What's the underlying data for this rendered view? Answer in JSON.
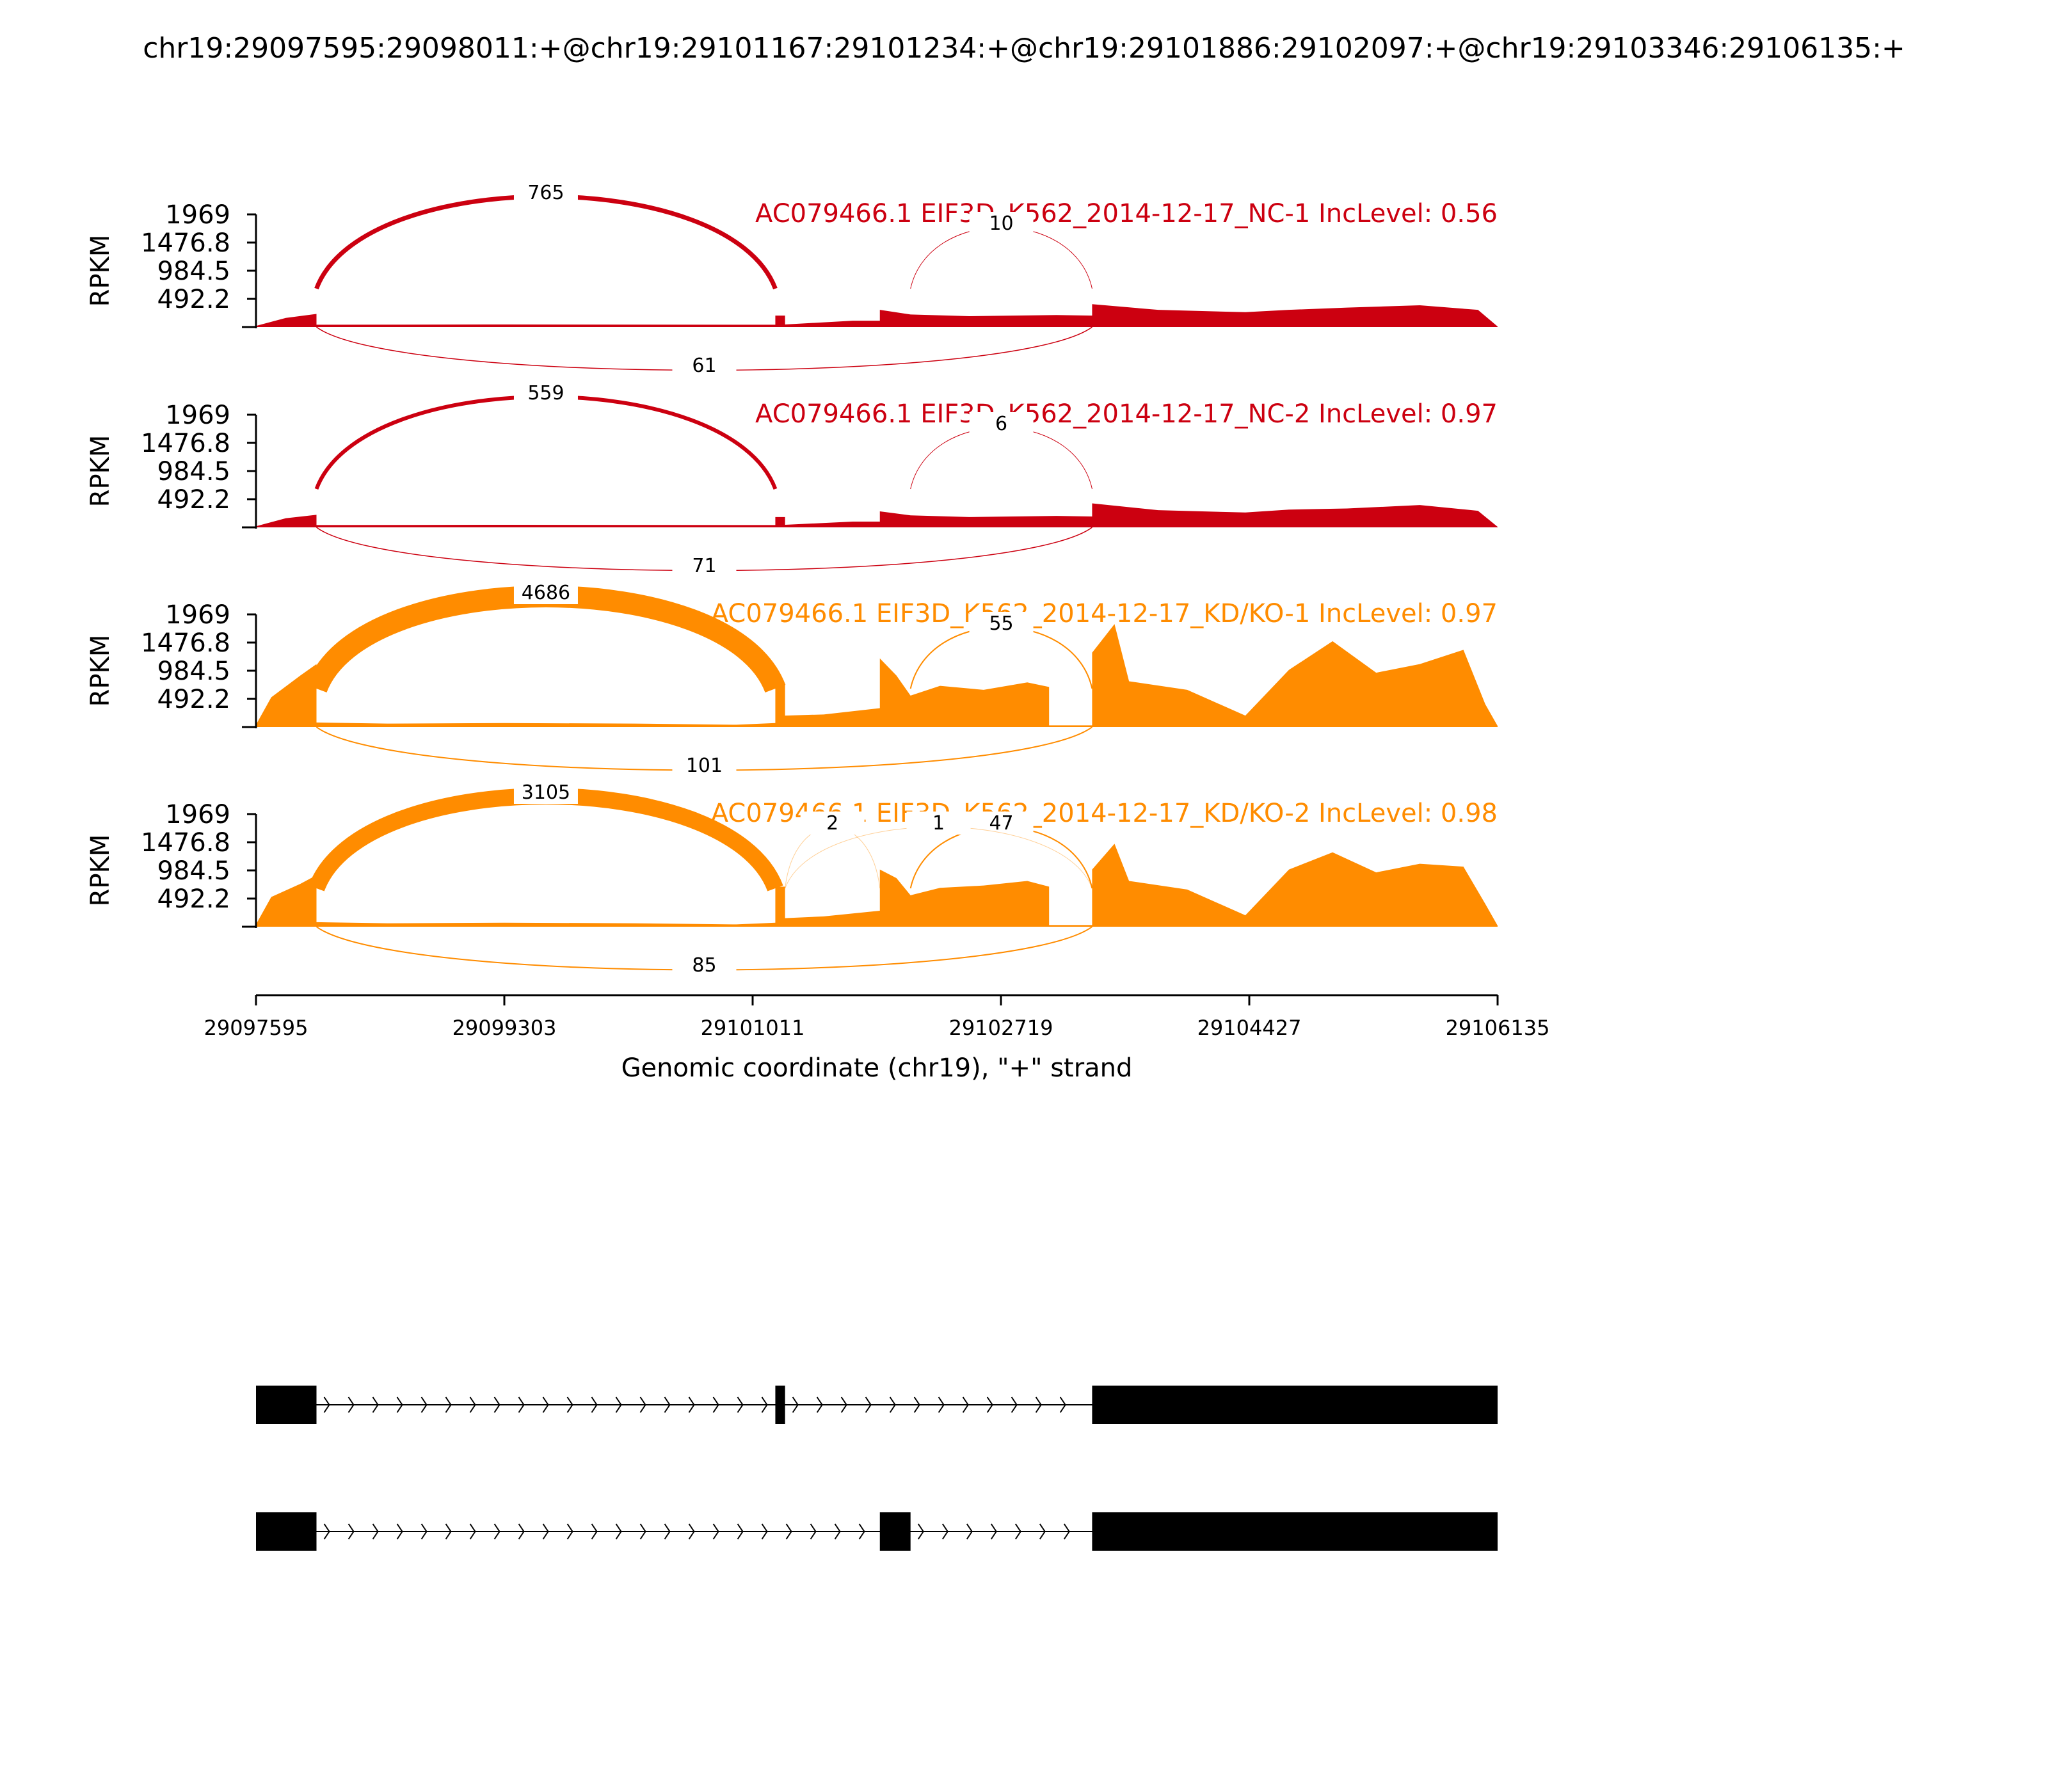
{
  "title": "chr19:29097595:29098011:+@chr19:29101167:29101234:+@chr19:29101886:29102097:+@chr19:29103346:29106135:+",
  "chart_data": {
    "type": "sashimi",
    "xlabel": "Genomic coordinate (chr19), \"+\" strand",
    "xlim": [
      29097595,
      29106135
    ],
    "x_ticks": [
      29097595,
      29099303,
      29101011,
      29102719,
      29104427,
      29106135
    ],
    "x_tick_labels": [
      "29097595",
      "29099303",
      "29101011",
      "29102719",
      "29104427",
      "29106135"
    ],
    "ylabel": "RPKM",
    "ylim": [
      0,
      1969
    ],
    "y_ticks": [
      0,
      492.2,
      984.5,
      1476.8,
      1969
    ],
    "y_tick_labels": [
      "",
      "492.2",
      "984.5",
      "1476.8",
      "1969"
    ],
    "exons": [
      {
        "start": 29097595,
        "end": 29098011
      },
      {
        "start": 29101167,
        "end": 29101234
      },
      {
        "start": 29101886,
        "end": 29102097
      },
      {
        "start": 29103346,
        "end": 29106135
      }
    ],
    "panels": [
      {
        "label": "AC079466.1 EIF3D_K562_2014-12-17_NC-1 IncLevel: 0.56",
        "color": "#cc0010",
        "coverage": [
          {
            "x": 29097595,
            "y": 20
          },
          {
            "x": 29097800,
            "y": 160
          },
          {
            "x": 29098011,
            "y": 230
          },
          {
            "x": 29098011,
            "y": 40
          },
          {
            "x": 29099303,
            "y": 45
          },
          {
            "x": 29101167,
            "y": 40
          },
          {
            "x": 29101167,
            "y": 200
          },
          {
            "x": 29101234,
            "y": 200
          },
          {
            "x": 29101234,
            "y": 45
          },
          {
            "x": 29101700,
            "y": 110
          },
          {
            "x": 29101886,
            "y": 110
          },
          {
            "x": 29101886,
            "y": 300
          },
          {
            "x": 29102097,
            "y": 220
          },
          {
            "x": 29102500,
            "y": 190
          },
          {
            "x": 29103100,
            "y": 210
          },
          {
            "x": 29103346,
            "y": 200
          },
          {
            "x": 29103346,
            "y": 400
          },
          {
            "x": 29103800,
            "y": 300
          },
          {
            "x": 29104400,
            "y": 260
          },
          {
            "x": 29104700,
            "y": 300
          },
          {
            "x": 29105100,
            "y": 340
          },
          {
            "x": 29105600,
            "y": 380
          },
          {
            "x": 29106000,
            "y": 300
          },
          {
            "x": 29106135,
            "y": 10
          }
        ],
        "junctions": [
          {
            "start": 29098011,
            "end": 29101167,
            "count": "765",
            "side": "above",
            "width": 7
          },
          {
            "start": 29098011,
            "end": 29103346,
            "count": "61",
            "side": "below",
            "width": 1.5
          },
          {
            "start": 29102097,
            "end": 29103346,
            "count": "10",
            "side": "above",
            "width": 1
          }
        ]
      },
      {
        "label": "AC079466.1 EIF3D_K562_2014-12-17_NC-2 IncLevel: 0.97",
        "color": "#cc0010",
        "coverage": [
          {
            "x": 29097595,
            "y": 20
          },
          {
            "x": 29097800,
            "y": 160
          },
          {
            "x": 29098011,
            "y": 220
          },
          {
            "x": 29098011,
            "y": 40
          },
          {
            "x": 29099303,
            "y": 45
          },
          {
            "x": 29101167,
            "y": 40
          },
          {
            "x": 29101167,
            "y": 180
          },
          {
            "x": 29101234,
            "y": 180
          },
          {
            "x": 29101234,
            "y": 45
          },
          {
            "x": 29101700,
            "y": 100
          },
          {
            "x": 29101886,
            "y": 100
          },
          {
            "x": 29101886,
            "y": 280
          },
          {
            "x": 29102097,
            "y": 210
          },
          {
            "x": 29102500,
            "y": 180
          },
          {
            "x": 29103100,
            "y": 200
          },
          {
            "x": 29103346,
            "y": 190
          },
          {
            "x": 29103346,
            "y": 420
          },
          {
            "x": 29103800,
            "y": 300
          },
          {
            "x": 29104400,
            "y": 260
          },
          {
            "x": 29104700,
            "y": 310
          },
          {
            "x": 29105100,
            "y": 330
          },
          {
            "x": 29105600,
            "y": 390
          },
          {
            "x": 29106000,
            "y": 290
          },
          {
            "x": 29106135,
            "y": 10
          }
        ],
        "junctions": [
          {
            "start": 29098011,
            "end": 29101167,
            "count": "559",
            "side": "above",
            "width": 6
          },
          {
            "start": 29098011,
            "end": 29103346,
            "count": "71",
            "side": "below",
            "width": 1.5
          },
          {
            "start": 29102097,
            "end": 29103346,
            "count": "6",
            "side": "above",
            "width": 1
          }
        ]
      },
      {
        "label": "AC079466.1 EIF3D_K562_2014-12-17_KD/KO-1 IncLevel: 0.97",
        "color": "#ff8c00",
        "coverage": [
          {
            "x": 29097595,
            "y": 40
          },
          {
            "x": 29097700,
            "y": 520
          },
          {
            "x": 29097900,
            "y": 900
          },
          {
            "x": 29098011,
            "y": 1100
          },
          {
            "x": 29098011,
            "y": 80
          },
          {
            "x": 29098500,
            "y": 60
          },
          {
            "x": 29099303,
            "y": 70
          },
          {
            "x": 29100200,
            "y": 60
          },
          {
            "x": 29100900,
            "y": 40
          },
          {
            "x": 29101167,
            "y": 70
          },
          {
            "x": 29101167,
            "y": 750
          },
          {
            "x": 29101234,
            "y": 750
          },
          {
            "x": 29101234,
            "y": 200
          },
          {
            "x": 29101500,
            "y": 220
          },
          {
            "x": 29101886,
            "y": 330
          },
          {
            "x": 29101886,
            "y": 1200
          },
          {
            "x": 29102000,
            "y": 900
          },
          {
            "x": 29102097,
            "y": 550
          },
          {
            "x": 29102300,
            "y": 720
          },
          {
            "x": 29102600,
            "y": 650
          },
          {
            "x": 29102900,
            "y": 780
          },
          {
            "x": 29103050,
            "y": 700
          },
          {
            "x": 29103050,
            "y": 30
          },
          {
            "x": 29103346,
            "y": 30
          },
          {
            "x": 29103346,
            "y": 1300
          },
          {
            "x": 29103500,
            "y": 1800
          },
          {
            "x": 29103600,
            "y": 800
          },
          {
            "x": 29104000,
            "y": 650
          },
          {
            "x": 29104400,
            "y": 200
          },
          {
            "x": 29104700,
            "y": 1000
          },
          {
            "x": 29105000,
            "y": 1500
          },
          {
            "x": 29105300,
            "y": 950
          },
          {
            "x": 29105600,
            "y": 1100
          },
          {
            "x": 29105900,
            "y": 1350
          },
          {
            "x": 29106050,
            "y": 400
          },
          {
            "x": 29106135,
            "y": 20
          }
        ],
        "junctions": [
          {
            "start": 29098011,
            "end": 29101167,
            "count": "4686",
            "side": "above",
            "width": 34
          },
          {
            "start": 29098011,
            "end": 29103346,
            "count": "101",
            "side": "below",
            "width": 2
          },
          {
            "start": 29102097,
            "end": 29103346,
            "count": "55",
            "side": "above",
            "width": 2
          }
        ]
      },
      {
        "label": "AC079466.1 EIF3D_K562_2014-12-17_KD/KO-2 IncLevel: 0.98",
        "color": "#ff8c00",
        "coverage": [
          {
            "x": 29097595,
            "y": 40
          },
          {
            "x": 29097700,
            "y": 520
          },
          {
            "x": 29097900,
            "y": 750
          },
          {
            "x": 29098011,
            "y": 900
          },
          {
            "x": 29098011,
            "y": 80
          },
          {
            "x": 29098500,
            "y": 60
          },
          {
            "x": 29099303,
            "y": 70
          },
          {
            "x": 29100200,
            "y": 60
          },
          {
            "x": 29100900,
            "y": 40
          },
          {
            "x": 29101167,
            "y": 70
          },
          {
            "x": 29101167,
            "y": 700
          },
          {
            "x": 29101234,
            "y": 700
          },
          {
            "x": 29101234,
            "y": 150
          },
          {
            "x": 29101500,
            "y": 180
          },
          {
            "x": 29101886,
            "y": 280
          },
          {
            "x": 29101886,
            "y": 1000
          },
          {
            "x": 29102000,
            "y": 850
          },
          {
            "x": 29102097,
            "y": 550
          },
          {
            "x": 29102300,
            "y": 680
          },
          {
            "x": 29102600,
            "y": 720
          },
          {
            "x": 29102900,
            "y": 800
          },
          {
            "x": 29103050,
            "y": 700
          },
          {
            "x": 29103050,
            "y": 30
          },
          {
            "x": 29103346,
            "y": 30
          },
          {
            "x": 29103346,
            "y": 1000
          },
          {
            "x": 29103500,
            "y": 1450
          },
          {
            "x": 29103600,
            "y": 800
          },
          {
            "x": 29104000,
            "y": 650
          },
          {
            "x": 29104400,
            "y": 200
          },
          {
            "x": 29104700,
            "y": 1000
          },
          {
            "x": 29105000,
            "y": 1300
          },
          {
            "x": 29105300,
            "y": 950
          },
          {
            "x": 29105600,
            "y": 1100
          },
          {
            "x": 29105900,
            "y": 1050
          },
          {
            "x": 29106050,
            "y": 400
          },
          {
            "x": 29106135,
            "y": 20
          }
        ],
        "junctions": [
          {
            "start": 29098011,
            "end": 29101167,
            "count": "3105",
            "side": "above",
            "width": 26
          },
          {
            "start": 29098011,
            "end": 29103346,
            "count": "85",
            "side": "below",
            "width": 2
          },
          {
            "start": 29102097,
            "end": 29103346,
            "count": "47",
            "side": "above",
            "width": 2
          },
          {
            "start": 29101234,
            "end": 29103346,
            "count": "1",
            "side": "above",
            "width": 1,
            "opacity": 0.4
          },
          {
            "start": 29101234,
            "end": 29101886,
            "count": "2",
            "side": "above",
            "width": 1,
            "opacity": 0.4
          }
        ]
      }
    ],
    "isoforms": [
      {
        "exons": [
          [
            29097595,
            29098011
          ],
          [
            29101167,
            29101234
          ],
          [
            29103346,
            29106135
          ]
        ]
      },
      {
        "exons": [
          [
            29097595,
            29098011
          ],
          [
            29101886,
            29102097
          ],
          [
            29103346,
            29106135
          ]
        ]
      }
    ]
  }
}
